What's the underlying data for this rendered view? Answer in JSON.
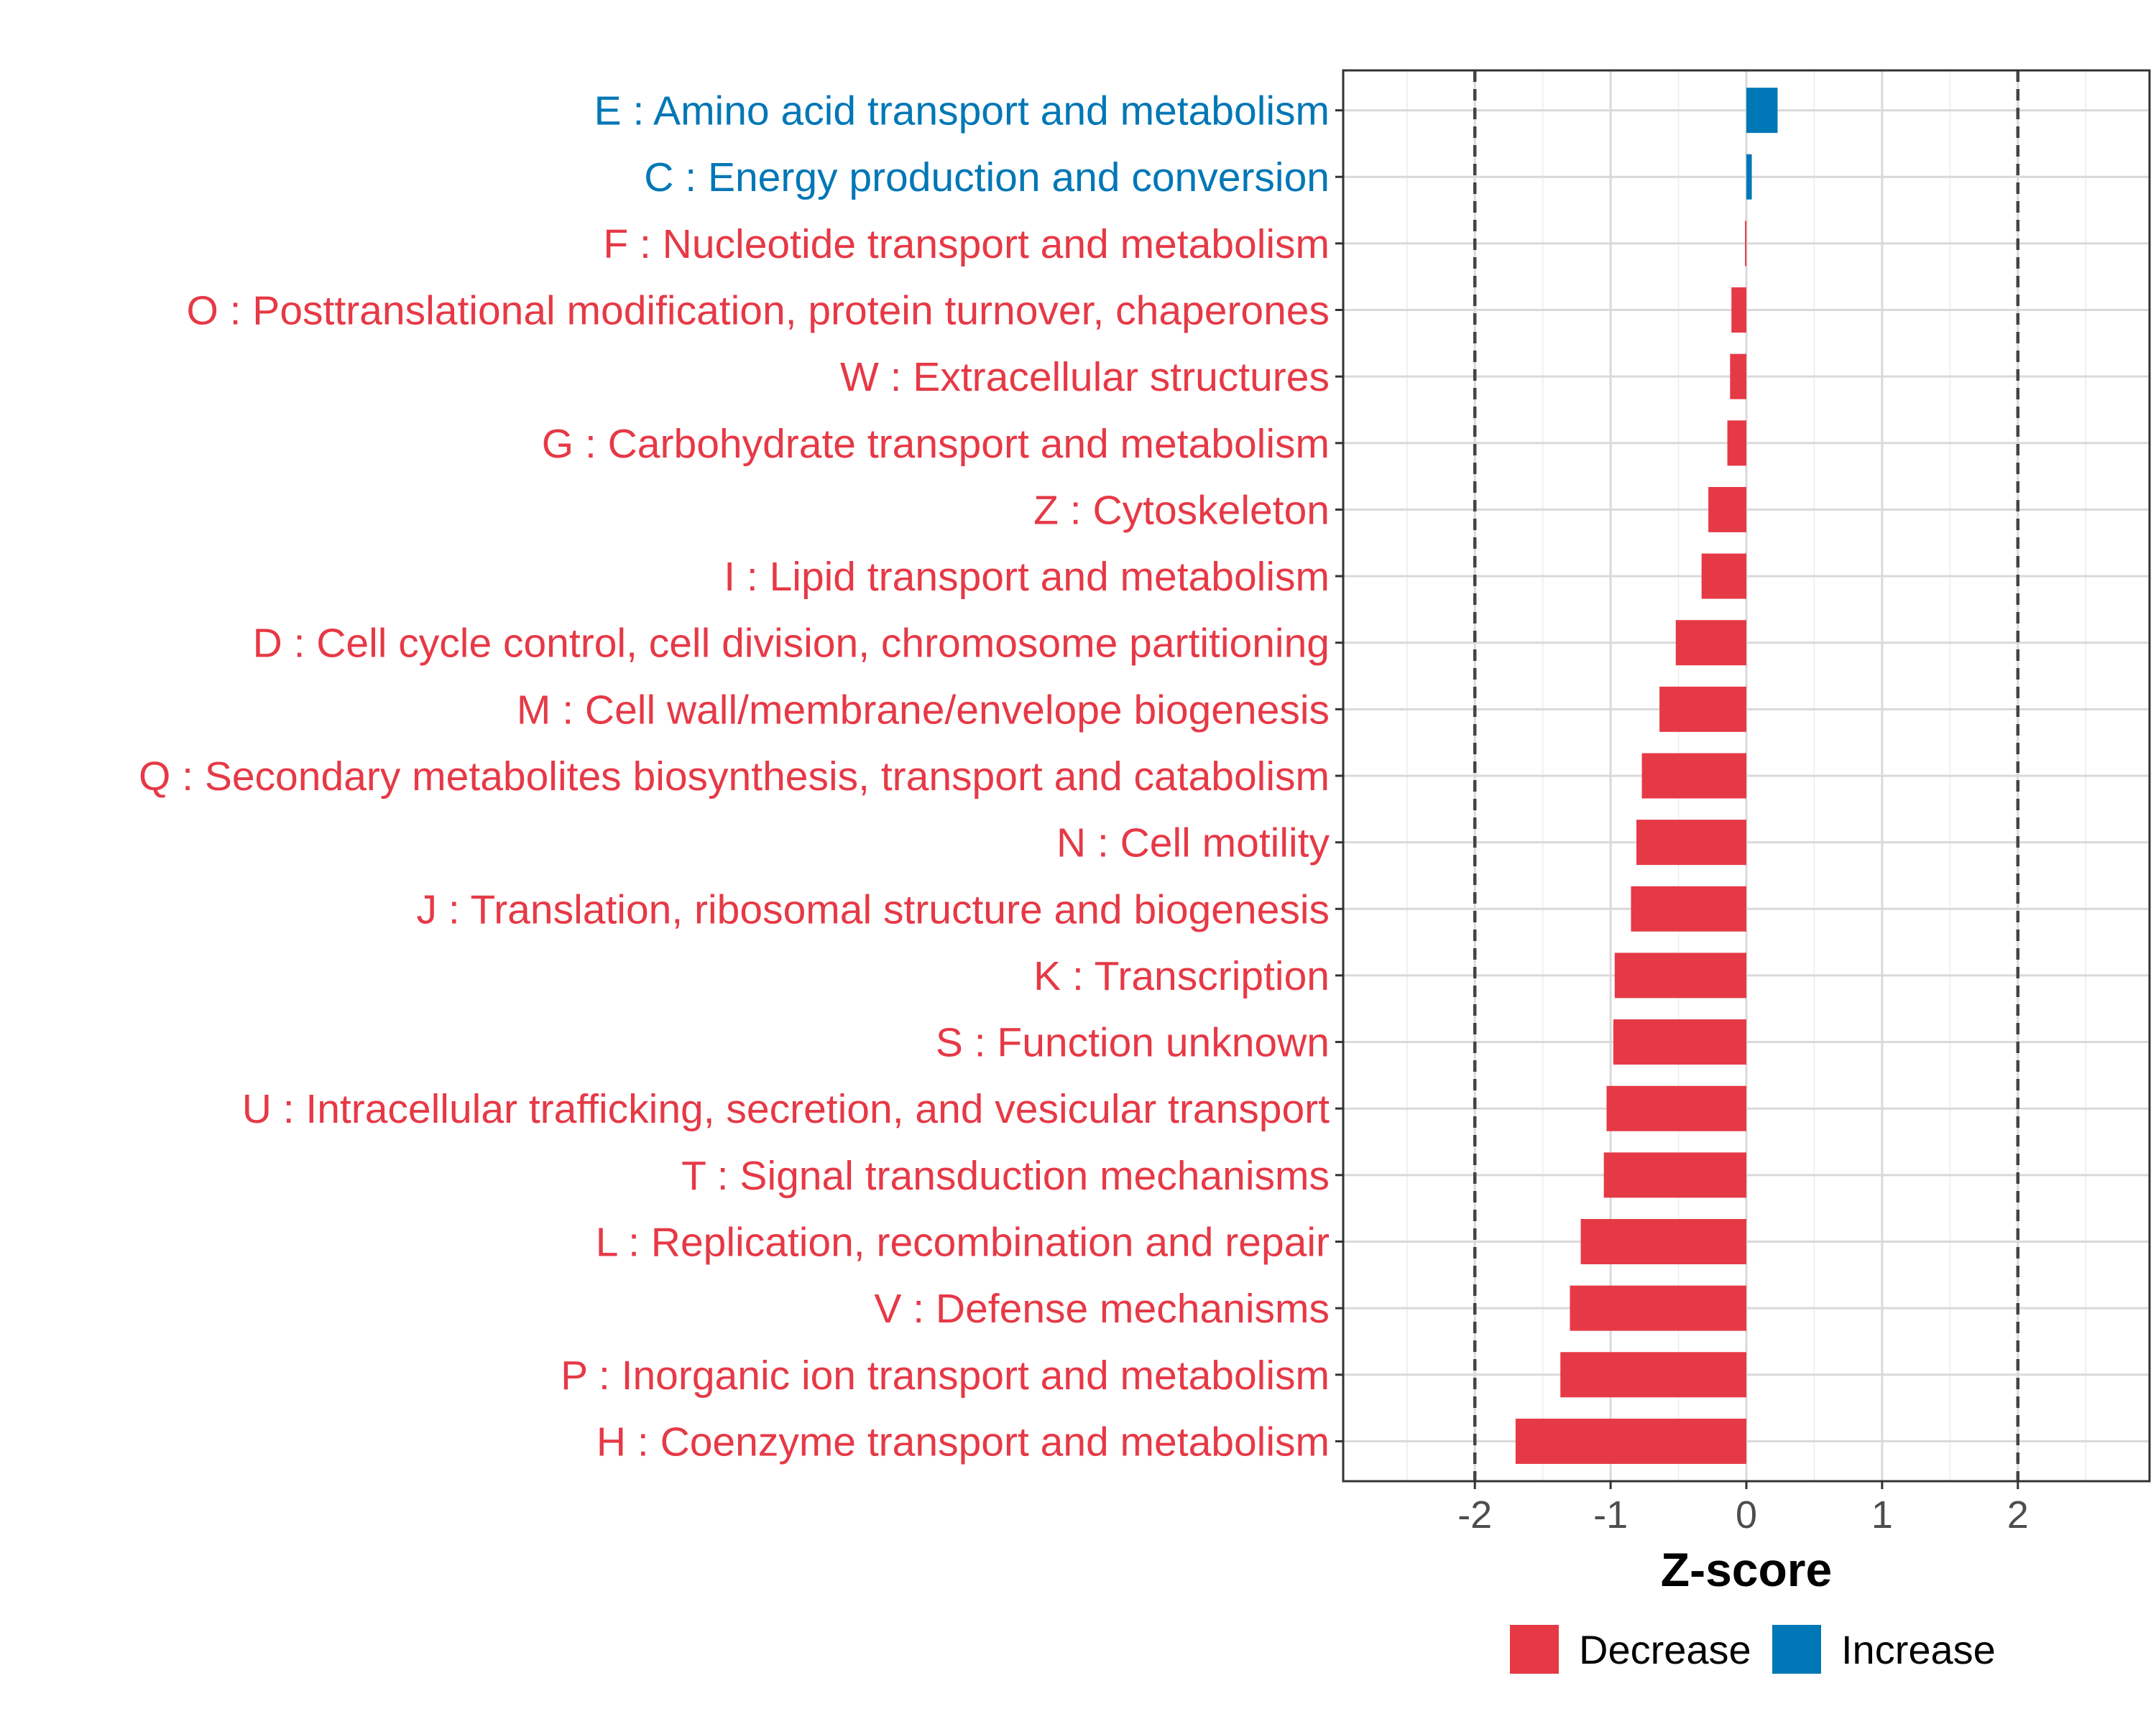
{
  "chart_data": {
    "type": "bar",
    "orientation": "horizontal",
    "title": "",
    "xlabel": "Z-score",
    "ylabel": "",
    "xlim": [
      -2.97,
      2.97
    ],
    "xticks": [
      -2,
      -1,
      0,
      1,
      2
    ],
    "xtick_labels": [
      "-2",
      "-1",
      "0",
      "1",
      "2"
    ],
    "reference_lines": [
      -2,
      2
    ],
    "grid": true,
    "legend_position": "bottom",
    "legend": [
      {
        "name": "Decrease",
        "color": "#E63946"
      },
      {
        "name": "Increase",
        "color": "#0077B6"
      }
    ],
    "categories": [
      "E : Amino acid transport and metabolism",
      "C : Energy production and conversion",
      "F : Nucleotide transport and metabolism",
      "O : Posttranslational modification, protein turnover, chaperones",
      "W : Extracellular structures",
      "G : Carbohydrate transport and metabolism",
      "Z : Cytoskeleton",
      "I : Lipid transport and metabolism",
      "D : Cell cycle control, cell division, chromosome partitioning",
      "M : Cell wall/membrane/envelope biogenesis",
      "Q : Secondary metabolites biosynthesis, transport and catabolism",
      "N : Cell motility",
      "J : Translation, ribosomal structure and biogenesis",
      "K : Transcription",
      "S : Function unknown",
      "U : Intracellular trafficking, secretion, and vesicular transport",
      "T : Signal transduction mechanisms",
      "L : Replication, recombination and repair",
      "V : Defense mechanisms",
      "P : Inorganic ion transport and metabolism",
      "H : Coenzyme transport and metabolism"
    ],
    "values": [
      0.23,
      0.04,
      -0.01,
      -0.11,
      -0.12,
      -0.14,
      -0.28,
      -0.33,
      -0.52,
      -0.64,
      -0.77,
      -0.81,
      -0.85,
      -0.97,
      -0.98,
      -1.03,
      -1.05,
      -1.22,
      -1.3,
      -1.37,
      -1.7
    ],
    "groups": [
      "Increase",
      "Increase",
      "Decrease",
      "Decrease",
      "Decrease",
      "Decrease",
      "Decrease",
      "Decrease",
      "Decrease",
      "Decrease",
      "Decrease",
      "Decrease",
      "Decrease",
      "Decrease",
      "Decrease",
      "Decrease",
      "Decrease",
      "Decrease",
      "Decrease",
      "Decrease",
      "Decrease"
    ]
  }
}
